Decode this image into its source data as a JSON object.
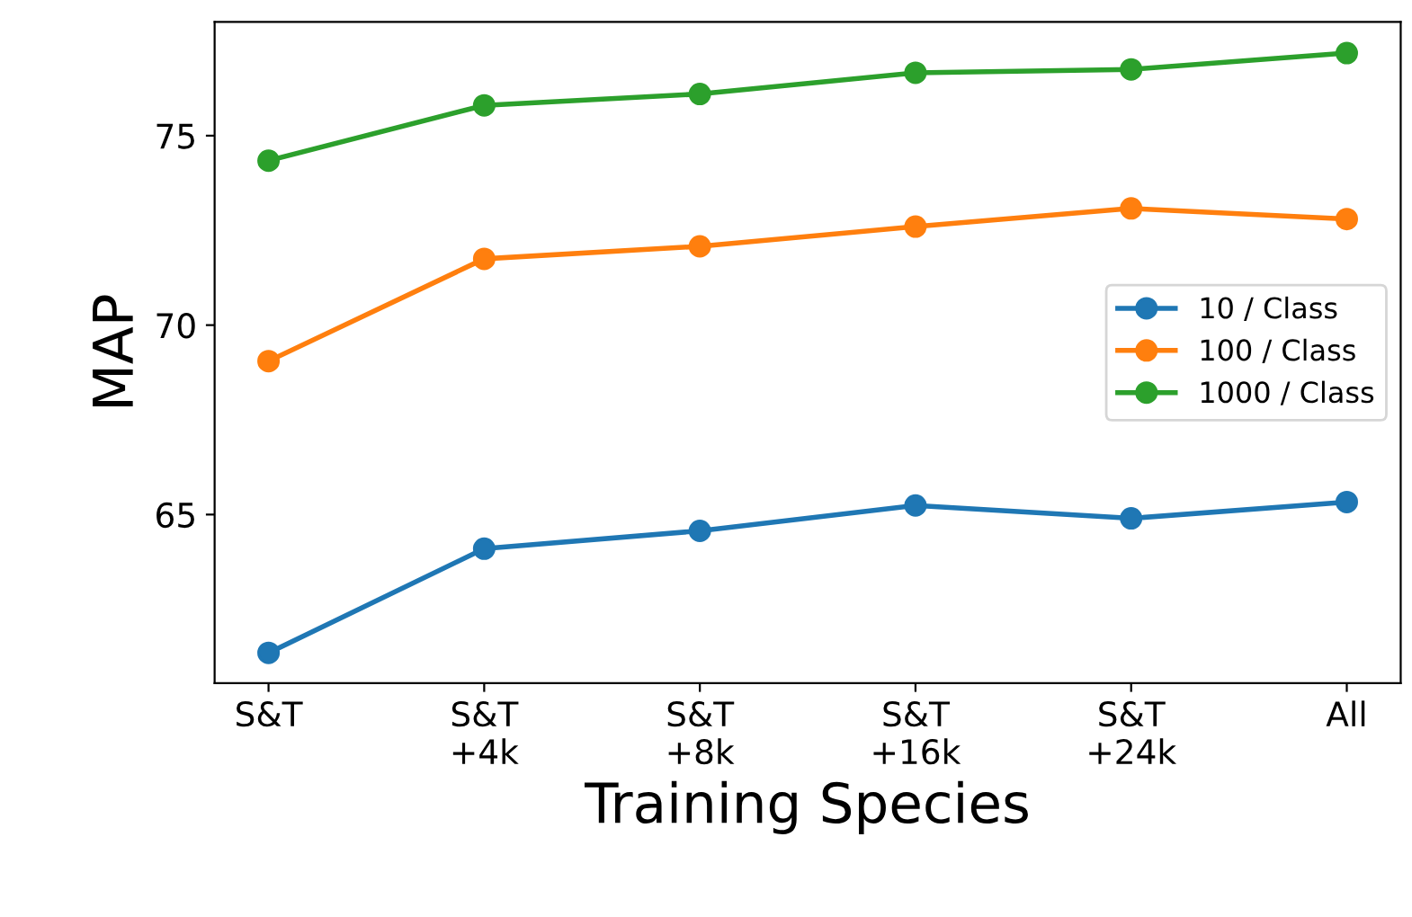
{
  "chart_data": {
    "type": "line",
    "xlabel": "Training Species",
    "ylabel": "MAP",
    "categories": [
      "S&T",
      "S&T\n+4k",
      "S&T\n+8k",
      "S&T\n+16k",
      "S&T\n+24k",
      "All"
    ],
    "series": [
      {
        "name": "10 / Class",
        "color": "#1f77b4",
        "values": [
          61.35,
          64.1,
          64.57,
          65.24,
          64.9,
          65.33
        ]
      },
      {
        "name": "100 / Class",
        "color": "#ff7f0e",
        "values": [
          69.05,
          71.75,
          72.08,
          72.6,
          73.08,
          72.8
        ]
      },
      {
        "name": "1000 / Class",
        "color": "#2ca02c",
        "values": [
          74.34,
          75.8,
          76.1,
          76.66,
          76.75,
          77.18
        ]
      }
    ],
    "ylim": [
      60.55,
      78.0
    ],
    "yticks": [
      65,
      70,
      75
    ],
    "marker": "circle",
    "line_style": "solid",
    "legend": "right",
    "grid": false
  }
}
